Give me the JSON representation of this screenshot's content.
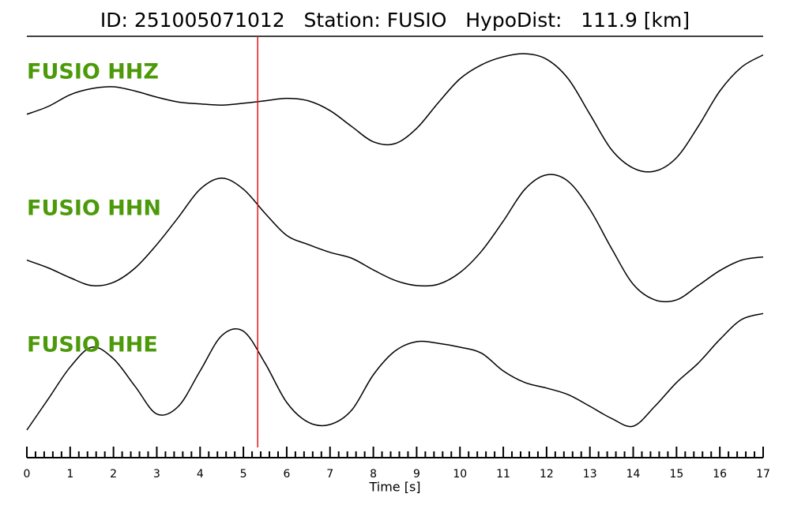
{
  "chart_data": {
    "type": "line",
    "title": "ID: 251005071012   Station: FUSIO   HypoDist:   111.9 [km]",
    "xlabel": "Time [s]",
    "xlim": [
      0,
      17
    ],
    "xticks": [
      0,
      1,
      2,
      3,
      4,
      5,
      6,
      7,
      8,
      9,
      10,
      11,
      12,
      13,
      14,
      15,
      16,
      17
    ],
    "xminorticks": [
      0.2,
      0.4,
      0.6,
      0.8,
      1.2,
      1.4,
      1.6,
      1.8,
      2.2,
      2.4,
      2.6,
      2.8,
      3.2,
      3.4,
      3.6,
      3.8,
      4.2,
      4.4,
      4.6,
      4.8,
      5.2,
      5.4,
      5.6,
      5.8,
      6.2,
      6.4,
      6.6,
      6.8,
      7.2,
      7.4,
      7.6,
      7.8,
      8.2,
      8.4,
      8.6,
      8.8,
      9.2,
      9.4,
      9.6,
      9.8,
      10.2,
      10.4,
      10.6,
      10.8,
      11.2,
      11.4,
      11.6,
      11.8,
      12.2,
      12.4,
      12.6,
      12.8,
      13.2,
      13.4,
      13.6,
      13.8,
      14.2,
      14.4,
      14.6,
      14.8,
      15.2,
      15.4,
      15.6,
      15.8,
      16.2,
      16.4,
      16.6,
      16.8
    ],
    "ylim": [
      -1,
      1
    ],
    "vline": 5.33,
    "vline_color": "#e8161b",
    "label_color": "#4c9a0a",
    "x": [
      0,
      0.5,
      1,
      1.5,
      2,
      2.5,
      3,
      3.5,
      4,
      4.5,
      5,
      5.5,
      6,
      6.5,
      7,
      7.5,
      8,
      8.5,
      9,
      9.5,
      10,
      10.5,
      11,
      11.5,
      12,
      12.5,
      13,
      13.5,
      14,
      14.5,
      15,
      15.5,
      16,
      16.5,
      17
    ],
    "series": [
      {
        "name": "FUSIO HHZ",
        "color": "#000000",
        "values": [
          -0.03,
          0.1,
          0.29,
          0.39,
          0.42,
          0.35,
          0.25,
          0.17,
          0.14,
          0.12,
          0.15,
          0.19,
          0.23,
          0.19,
          0.03,
          -0.23,
          -0.48,
          -0.51,
          -0.26,
          0.16,
          0.55,
          0.78,
          0.91,
          0.96,
          0.87,
          0.55,
          -0.03,
          -0.61,
          -0.91,
          -0.96,
          -0.74,
          -0.23,
          0.35,
          0.74,
          0.94
        ]
      },
      {
        "name": "FUSIO HHN",
        "color": "#000000",
        "values": [
          -0.33,
          -0.45,
          -0.6,
          -0.72,
          -0.67,
          -0.45,
          -0.09,
          0.33,
          0.76,
          0.93,
          0.76,
          0.39,
          0.05,
          -0.09,
          -0.21,
          -0.3,
          -0.48,
          -0.64,
          -0.72,
          -0.7,
          -0.52,
          -0.19,
          0.27,
          0.76,
          0.98,
          0.88,
          0.45,
          -0.15,
          -0.7,
          -0.94,
          -0.94,
          -0.72,
          -0.49,
          -0.33,
          -0.28
        ]
      },
      {
        "name": "FUSIO HHE",
        "color": "#000000",
        "values": [
          -1.0,
          -0.43,
          0.14,
          0.5,
          0.29,
          -0.21,
          -0.71,
          -0.57,
          0.07,
          0.71,
          0.79,
          0.21,
          -0.5,
          -0.86,
          -0.9,
          -0.64,
          0,
          0.43,
          0.6,
          0.57,
          0.5,
          0.39,
          0.07,
          -0.14,
          -0.24,
          -0.36,
          -0.57,
          -0.79,
          -0.93,
          -0.57,
          -0.14,
          0.21,
          0.64,
          1.0,
          1.11
        ]
      }
    ]
  }
}
